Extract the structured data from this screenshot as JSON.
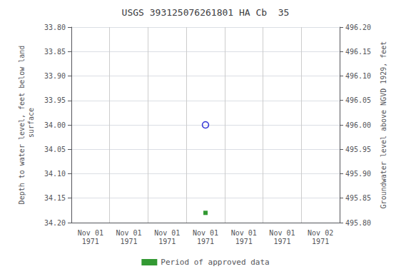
{
  "chart_data": {
    "type": "scatter",
    "title": "USGS 393125076261801 HA Cb  35",
    "ylabel": "Depth to water level, feet below land\n surface",
    "y2label": "Groundwater level above NGVD 1929, feet",
    "categories": [
      "Nov 01\n1971",
      "Nov 01\n1971",
      "Nov 01\n1971",
      "Nov 01\n1971",
      "Nov 01\n1971",
      "Nov 01\n1971",
      "Nov 02\n1971"
    ],
    "series": [
      {
        "color": "#0000cc",
        "marker": "open_circle",
        "values": [
          null,
          null,
          null,
          34.0,
          null,
          null,
          null
        ]
      },
      {
        "name": "Period of approved data",
        "color": "#008000",
        "marker": "square",
        "values": [
          null,
          null,
          null,
          34.18,
          null,
          null,
          null
        ]
      }
    ],
    "ylim": [
      34.2,
      33.8
    ],
    "yticks": [
      {
        "value": 33.8,
        "label": "33.80"
      },
      {
        "value": 33.85,
        "label": "33.85"
      },
      {
        "value": 33.9,
        "label": "33.90"
      },
      {
        "value": 33.95,
        "label": "33.95"
      },
      {
        "value": 34.0,
        "label": "34.00"
      },
      {
        "value": 34.05,
        "label": "34.05"
      },
      {
        "value": 34.1,
        "label": "34.10"
      },
      {
        "value": 34.15,
        "label": "34.15"
      },
      {
        "value": 34.2,
        "label": "34.20"
      }
    ],
    "y2lim": [
      495.8,
      496.2
    ],
    "y2ticks": [
      {
        "value": 496.2,
        "label": "496.20"
      },
      {
        "value": 496.15,
        "label": "496.15"
      },
      {
        "value": 496.1,
        "label": "496.10"
      },
      {
        "value": 496.05,
        "label": "496.05"
      },
      {
        "value": 496.0,
        "label": "496.00"
      },
      {
        "value": 495.95,
        "label": "495.95"
      },
      {
        "value": 495.9,
        "label": "495.90"
      },
      {
        "value": 495.85,
        "label": "495.85"
      },
      {
        "value": 495.8,
        "label": "495.80"
      }
    ],
    "grid": true,
    "legend": "bottom"
  }
}
